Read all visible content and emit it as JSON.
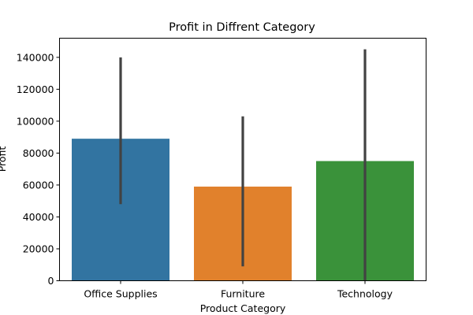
{
  "chart_data": {
    "type": "bar",
    "title": "Profit in Diffrent Category",
    "xlabel": "Product Category",
    "ylabel": "Profit",
    "categories": [
      "Office Supplies",
      "Furniture",
      "Technology"
    ],
    "values": [
      89000,
      59000,
      75000
    ],
    "error_bars": [
      [
        48000,
        140000
      ],
      [
        9000,
        103000
      ],
      [
        0,
        145000
      ]
    ],
    "colors": [
      "#3274a1",
      "#e1812c",
      "#3a923a"
    ],
    "error_color": "#424242",
    "ylim": [
      0,
      152000
    ],
    "yticks": [
      0,
      20000,
      40000,
      60000,
      80000,
      100000,
      120000,
      140000
    ],
    "ytick_labels": [
      "0",
      "20000",
      "40000",
      "60000",
      "80000",
      "100000",
      "120000",
      "140000"
    ],
    "grid": false,
    "legend": "none"
  }
}
